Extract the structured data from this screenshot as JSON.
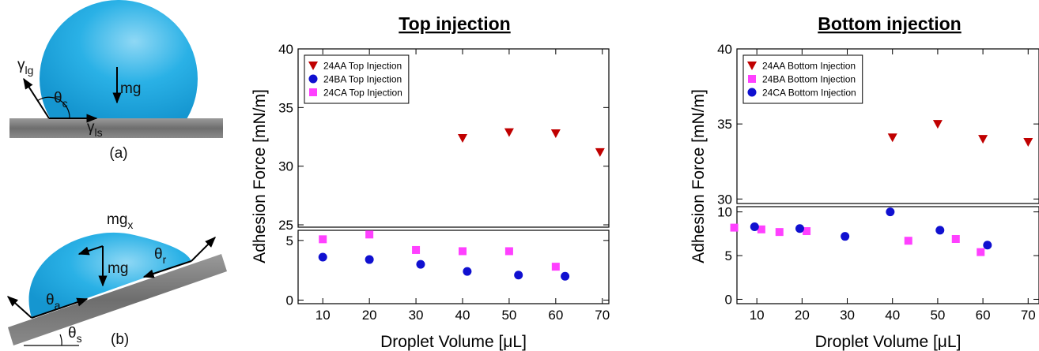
{
  "diagram": {
    "panel_a": {
      "gamma_lg": {
        "symbol": "γ",
        "sub": "lg"
      },
      "theta_c": {
        "symbol": "θ",
        "sub": "c"
      },
      "mg": "mg",
      "gamma_ls": {
        "symbol": "γ",
        "sub": "ls"
      },
      "caption": "(a)"
    },
    "panel_b": {
      "mg_x": {
        "symbol": "mg",
        "sub": "x"
      },
      "mg": "mg",
      "theta_r": {
        "symbol": "θ",
        "sub": "r"
      },
      "theta_a": {
        "symbol": "θ",
        "sub": "a"
      },
      "theta_s": {
        "symbol": "θ",
        "sub": "s"
      },
      "caption": "(b)"
    }
  },
  "chart_data": [
    {
      "type": "scatter",
      "title": "Top injection",
      "x_label": "Droplet Volume [μL]",
      "y_label": "Adhesion Force [mN/m]",
      "xlim": [
        4.7,
        71.4
      ],
      "xticks": [
        10,
        20,
        30,
        40,
        50,
        60,
        70
      ],
      "legend": "upper left",
      "panels": [
        {
          "ylim": [
            24.8,
            40
          ],
          "yticks": [
            25,
            30,
            35,
            40
          ]
        },
        {
          "ylim": [
            -0.3,
            5.85
          ],
          "yticks": [
            0,
            5
          ]
        }
      ],
      "series": [
        {
          "name": "24AA Top Injection",
          "color": "#c00000",
          "marker": "triangle-down",
          "x": [
            40,
            50,
            60,
            69.5
          ],
          "values": [
            32.4,
            32.9,
            32.8,
            31.2
          ]
        },
        {
          "name": "24BA  Top Injection",
          "color": "#1010d0",
          "marker": "circle",
          "x": [
            10,
            20,
            31,
            41,
            52,
            62
          ],
          "values": [
            3.6,
            3.4,
            3.0,
            2.4,
            2.1,
            2.0
          ]
        },
        {
          "name": "24CA  Top Injection",
          "color": "#ff40ff",
          "marker": "square",
          "x": [
            10,
            20,
            30,
            40,
            50,
            60
          ],
          "values": [
            5.1,
            5.5,
            4.2,
            4.1,
            4.1,
            2.8
          ]
        }
      ]
    },
    {
      "type": "scatter",
      "title": "Bottom injection",
      "x_label": "Droplet Volume [μL]",
      "y_label": "Adhesion Force [mN/m]",
      "xlim": [
        5.6,
        72.4
      ],
      "xticks": [
        10,
        20,
        30,
        40,
        50,
        60,
        70
      ],
      "legend": "upper left",
      "panels": [
        {
          "ylim": [
            29.7,
            40
          ],
          "yticks": [
            30,
            35,
            40
          ]
        },
        {
          "ylim": [
            -0.5,
            10.6
          ],
          "yticks": [
            0,
            5,
            10
          ]
        }
      ],
      "series": [
        {
          "name": "24AA Bottom Injection",
          "color": "#c00000",
          "marker": "triangle-down",
          "x": [
            40,
            50,
            60,
            70
          ],
          "values": [
            34.1,
            35.0,
            34.0,
            33.8
          ]
        },
        {
          "name": "24BA Bottom Injection",
          "color": "#ff40ff",
          "marker": "square",
          "x": [
            5,
            11,
            15,
            21,
            43.5,
            54,
            59.5
          ],
          "values": [
            8.2,
            8.0,
            7.7,
            7.8,
            6.7,
            6.9,
            5.4
          ]
        },
        {
          "name": "24CA Bottom Injection",
          "color": "#1010d0",
          "marker": "circle",
          "x": [
            9.5,
            19.5,
            29.5,
            39.5,
            50.5,
            61
          ],
          "values": [
            8.3,
            8.1,
            7.2,
            10.0,
            7.9,
            6.2
          ]
        }
      ]
    }
  ]
}
